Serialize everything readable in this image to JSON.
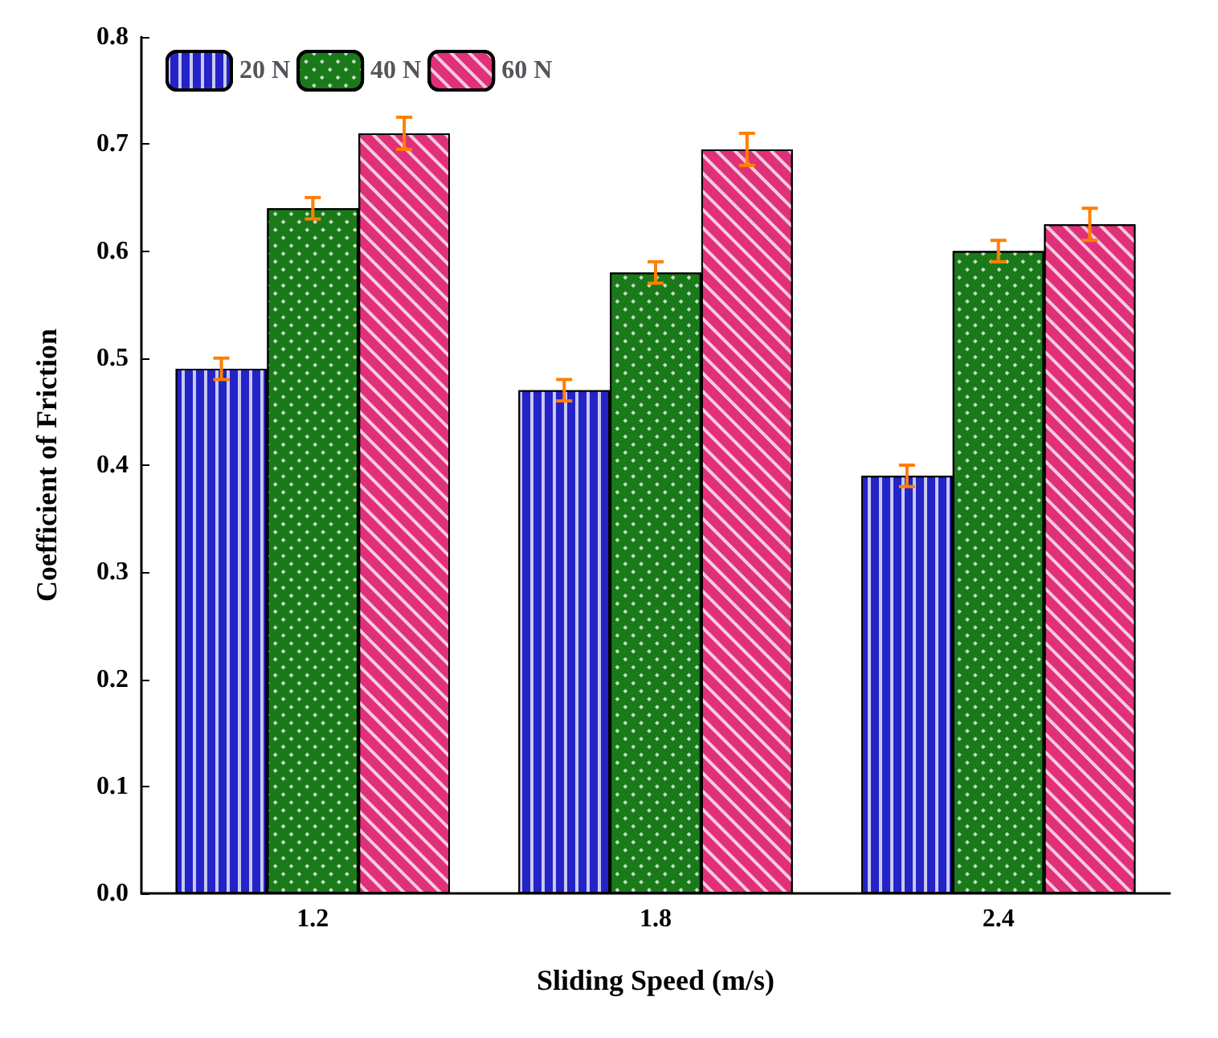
{
  "chart_data": {
    "type": "bar",
    "xlabel": "Sliding Speed (m/s)",
    "ylabel": "Coefficient of Friction",
    "categories": [
      "1.2",
      "1.8",
      "2.4"
    ],
    "series": [
      {
        "name": "20 N",
        "color": "#2323c8",
        "values": [
          0.49,
          0.47,
          0.39
        ],
        "errors": [
          0.01,
          0.01,
          0.01
        ]
      },
      {
        "name": "40 N",
        "color": "#1a7a1a",
        "values": [
          0.64,
          0.58,
          0.6
        ],
        "errors": [
          0.01,
          0.01,
          0.01
        ]
      },
      {
        "name": "60 N",
        "color": "#e0307a",
        "values": [
          0.71,
          0.695,
          0.625
        ],
        "errors": [
          0.015,
          0.015,
          0.015
        ]
      }
    ],
    "ylim": [
      0,
      0.8
    ],
    "yticks": [
      {
        "value": 0,
        "label": "0.0"
      },
      0.1,
      0.2,
      0.3,
      0.4,
      0.5,
      0.6,
      0.7,
      0.8
    ],
    "grid": false,
    "legend": "top left"
  }
}
